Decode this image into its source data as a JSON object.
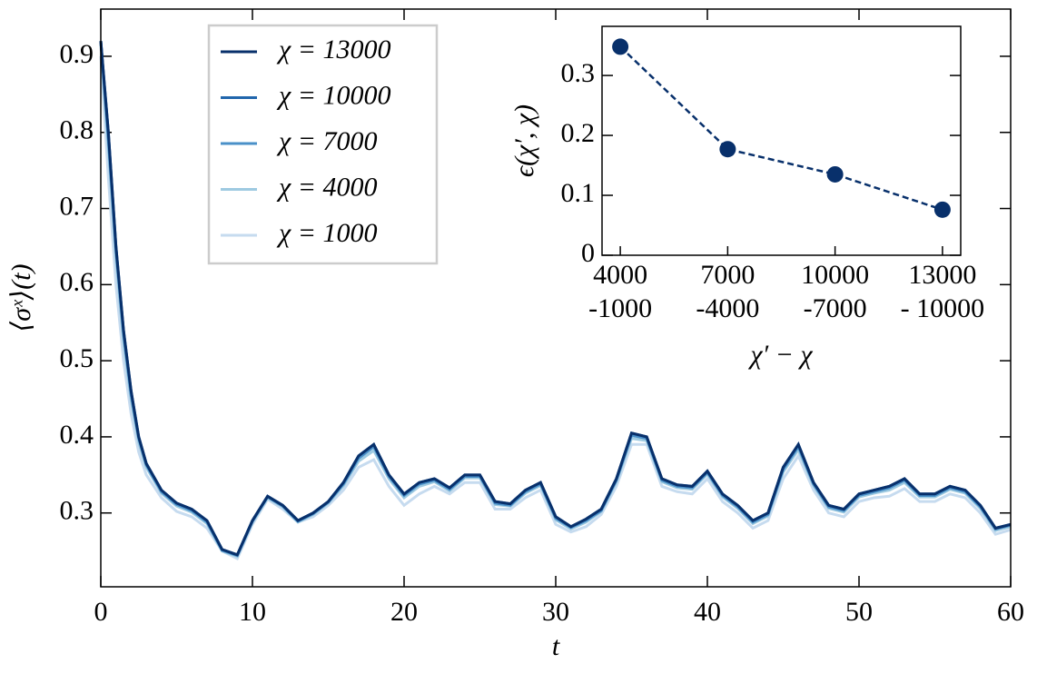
{
  "chart_data": [
    {
      "type": "line",
      "xlabel": "t",
      "ylabel": "⟨σˣ⟩(t)",
      "x": [
        0,
        0.5,
        1,
        1.5,
        2,
        2.5,
        3,
        4,
        5,
        6,
        7,
        8,
        9,
        10,
        11,
        12,
        13,
        14,
        15,
        16,
        17,
        18,
        19,
        20,
        21,
        22,
        23,
        24,
        25,
        26,
        27,
        28,
        29,
        30,
        31,
        32,
        33,
        34,
        35,
        36,
        37,
        38,
        39,
        40,
        41,
        42,
        43,
        44,
        45,
        46,
        47,
        48,
        49,
        50,
        51,
        52,
        53,
        54,
        55,
        56,
        57,
        58,
        59,
        60
      ],
      "series": [
        {
          "name": "χ = 13000",
          "color": "#08306b",
          "values": [
            0.92,
            0.8,
            0.65,
            0.54,
            0.46,
            0.4,
            0.365,
            0.33,
            0.313,
            0.305,
            0.29,
            0.252,
            0.245,
            0.29,
            0.322,
            0.31,
            0.29,
            0.3,
            0.315,
            0.34,
            0.375,
            0.39,
            0.35,
            0.325,
            0.34,
            0.345,
            0.333,
            0.35,
            0.35,
            0.315,
            0.312,
            0.33,
            0.34,
            0.295,
            0.282,
            0.292,
            0.305,
            0.345,
            0.405,
            0.4,
            0.345,
            0.337,
            0.335,
            0.355,
            0.325,
            0.31,
            0.29,
            0.3,
            0.36,
            0.39,
            0.34,
            0.31,
            0.305,
            0.325,
            0.33,
            0.335,
            0.345,
            0.325,
            0.325,
            0.335,
            0.33,
            0.31,
            0.28,
            0.285
          ]
        },
        {
          "name": "χ = 10000",
          "color": "#2166ac",
          "values": [
            0.92,
            0.8,
            0.65,
            0.54,
            0.46,
            0.4,
            0.365,
            0.33,
            0.313,
            0.305,
            0.29,
            0.252,
            0.245,
            0.29,
            0.322,
            0.31,
            0.29,
            0.3,
            0.315,
            0.34,
            0.375,
            0.39,
            0.35,
            0.325,
            0.34,
            0.345,
            0.333,
            0.35,
            0.35,
            0.315,
            0.312,
            0.33,
            0.34,
            0.295,
            0.282,
            0.292,
            0.305,
            0.345,
            0.405,
            0.4,
            0.345,
            0.337,
            0.335,
            0.355,
            0.325,
            0.31,
            0.29,
            0.3,
            0.36,
            0.39,
            0.34,
            0.31,
            0.305,
            0.325,
            0.33,
            0.335,
            0.345,
            0.325,
            0.325,
            0.335,
            0.33,
            0.31,
            0.28,
            0.285
          ]
        },
        {
          "name": "χ = 7000",
          "color": "#4a90c8",
          "values": [
            0.92,
            0.79,
            0.645,
            0.535,
            0.455,
            0.398,
            0.363,
            0.328,
            0.311,
            0.303,
            0.288,
            0.251,
            0.244,
            0.289,
            0.321,
            0.309,
            0.289,
            0.299,
            0.314,
            0.338,
            0.372,
            0.387,
            0.348,
            0.323,
            0.338,
            0.343,
            0.331,
            0.348,
            0.348,
            0.313,
            0.31,
            0.328,
            0.338,
            0.293,
            0.281,
            0.29,
            0.303,
            0.343,
            0.402,
            0.398,
            0.343,
            0.335,
            0.333,
            0.353,
            0.323,
            0.308,
            0.288,
            0.298,
            0.357,
            0.387,
            0.338,
            0.308,
            0.303,
            0.323,
            0.328,
            0.333,
            0.343,
            0.323,
            0.323,
            0.333,
            0.328,
            0.308,
            0.279,
            0.284
          ]
        },
        {
          "name": "χ = 4000",
          "color": "#9ecae1",
          "values": [
            0.915,
            0.78,
            0.635,
            0.525,
            0.448,
            0.393,
            0.36,
            0.326,
            0.309,
            0.301,
            0.286,
            0.25,
            0.243,
            0.288,
            0.32,
            0.308,
            0.288,
            0.298,
            0.313,
            0.336,
            0.368,
            0.382,
            0.345,
            0.32,
            0.335,
            0.341,
            0.329,
            0.346,
            0.346,
            0.311,
            0.309,
            0.326,
            0.336,
            0.291,
            0.279,
            0.288,
            0.302,
            0.341,
            0.398,
            0.395,
            0.341,
            0.333,
            0.331,
            0.351,
            0.321,
            0.306,
            0.286,
            0.296,
            0.354,
            0.383,
            0.336,
            0.306,
            0.301,
            0.321,
            0.326,
            0.33,
            0.34,
            0.321,
            0.321,
            0.331,
            0.326,
            0.306,
            0.277,
            0.282
          ]
        },
        {
          "name": "χ = 1000",
          "color": "#c6dbef",
          "values": [
            0.9,
            0.74,
            0.6,
            0.5,
            0.43,
            0.38,
            0.35,
            0.32,
            0.302,
            0.295,
            0.28,
            0.25,
            0.24,
            0.285,
            0.318,
            0.305,
            0.288,
            0.295,
            0.31,
            0.33,
            0.36,
            0.37,
            0.335,
            0.31,
            0.325,
            0.335,
            0.325,
            0.34,
            0.34,
            0.305,
            0.305,
            0.32,
            0.33,
            0.285,
            0.275,
            0.282,
            0.298,
            0.335,
            0.39,
            0.39,
            0.335,
            0.328,
            0.325,
            0.345,
            0.315,
            0.3,
            0.28,
            0.29,
            0.345,
            0.375,
            0.33,
            0.3,
            0.295,
            0.315,
            0.32,
            0.322,
            0.332,
            0.315,
            0.315,
            0.325,
            0.32,
            0.3,
            0.272,
            0.278
          ]
        }
      ],
      "xlim": [
        0,
        60
      ],
      "ylim": [
        0.203,
        0.962
      ],
      "xticks": [
        0,
        10,
        20,
        30,
        40,
        50,
        60
      ],
      "yticks": [
        0.3,
        0.4,
        0.5,
        0.6,
        0.7,
        0.8,
        0.9
      ],
      "legend": "upper left"
    },
    {
      "type": "line",
      "xlabel": "χ′ − χ",
      "ylabel": "ϵ(χ′, χ)",
      "categories": [
        [
          "4000",
          "-1000"
        ],
        [
          "7000",
          "-4000"
        ],
        [
          "10000",
          "-7000"
        ],
        [
          "13000",
          "- 10000"
        ]
      ],
      "values": [
        0.348,
        0.177,
        0.135,
        0.076
      ],
      "color": "#08306b",
      "line_style": "dashed",
      "markers": true,
      "ylim": [
        0,
        0.382
      ],
      "yticks": [
        0,
        0.1,
        0.2,
        0.3
      ]
    }
  ]
}
